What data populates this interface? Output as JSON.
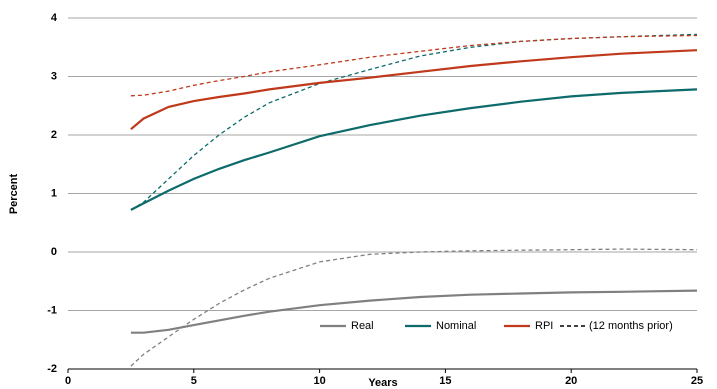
{
  "chart_data": {
    "type": "line",
    "x_label": "Years",
    "y_label": "Percent",
    "x": [
      2.5,
      3,
      4,
      5,
      6,
      7,
      8,
      10,
      12,
      14,
      16,
      18,
      20,
      22,
      25
    ],
    "series": [
      {
        "name": "Real",
        "color": "#808080",
        "values": [
          -1.38,
          -1.38,
          -1.33,
          -1.25,
          -1.17,
          -1.09,
          -1.02,
          -0.91,
          -0.83,
          -0.77,
          -0.73,
          -0.71,
          -0.69,
          -0.68,
          -0.66
        ],
        "prior_values": [
          -1.95,
          -1.75,
          -1.45,
          -1.15,
          -0.88,
          -0.65,
          -0.45,
          -0.17,
          -0.04,
          0.0,
          0.02,
          0.03,
          0.04,
          0.05,
          0.04
        ]
      },
      {
        "name": "Nominal",
        "color": "#0e6b6b",
        "values": [
          0.72,
          0.83,
          1.05,
          1.25,
          1.42,
          1.57,
          1.7,
          1.98,
          2.17,
          2.33,
          2.46,
          2.57,
          2.66,
          2.72,
          2.78
        ],
        "prior_values": [
          0.72,
          0.85,
          1.25,
          1.65,
          2.0,
          2.3,
          2.55,
          2.88,
          3.12,
          3.35,
          3.5,
          3.6,
          3.65,
          3.68,
          3.72
        ]
      },
      {
        "name": "RPI",
        "color": "#c0391b",
        "values": [
          2.1,
          2.28,
          2.48,
          2.58,
          2.65,
          2.71,
          2.78,
          2.89,
          2.98,
          3.08,
          3.18,
          3.26,
          3.33,
          3.39,
          3.45
        ],
        "prior_values": [
          2.67,
          2.68,
          2.75,
          2.85,
          2.93,
          3.0,
          3.08,
          3.2,
          3.33,
          3.43,
          3.53,
          3.6,
          3.65,
          3.68,
          3.7
        ]
      }
    ],
    "prior_label": "(12 months prior)",
    "prior_legend_color": "#000000",
    "xlim": [
      0,
      25
    ],
    "xticks": [
      0,
      5,
      10,
      15,
      20,
      25
    ],
    "ylim": [
      -2,
      4
    ],
    "yticks": [
      -2,
      -1,
      0,
      1,
      2,
      3,
      4
    ],
    "grid": true
  }
}
